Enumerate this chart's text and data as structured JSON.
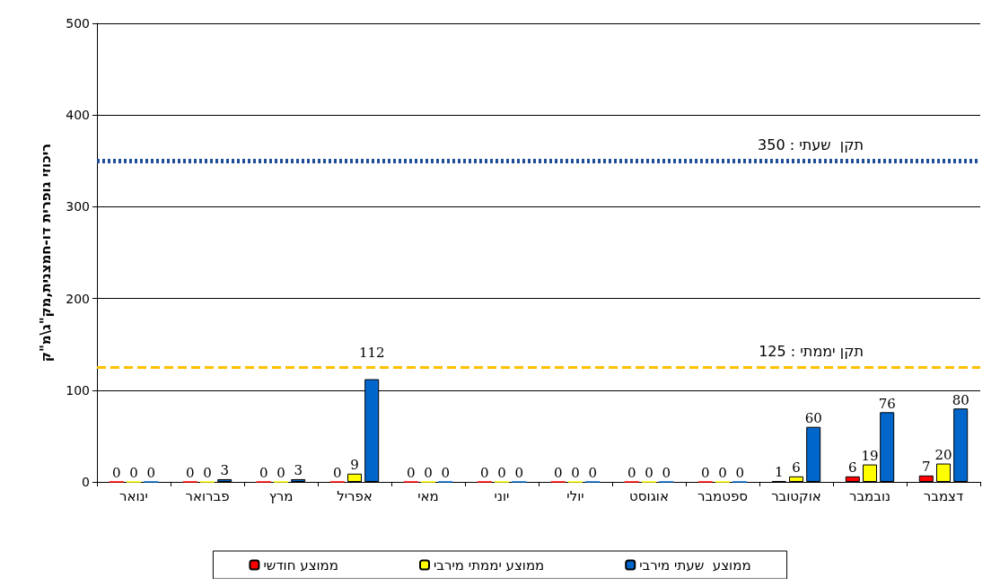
{
  "chart_data": {
    "type": "bar",
    "ylabel": "ריכוזי גופרית דו-חמצנית,מק\"ג\\מ\"ק",
    "categories": [
      "ינואר",
      "פברואר",
      "מרץ",
      "אפריל",
      "מאי",
      "יוני",
      "יולי",
      "אוגוסט",
      "ספטמבר",
      "אוקטובר",
      "נובמבר",
      "דצמבר"
    ],
    "series": [
      {
        "name": "ממוצע חודשי",
        "color": "#ff0000",
        "values": [
          0,
          0,
          0,
          0,
          0,
          0,
          0,
          0,
          0,
          1,
          6,
          7
        ]
      },
      {
        "name": "ממוצע יממתי מירבי",
        "color": "#ffff00",
        "values": [
          0,
          0,
          0,
          9,
          0,
          0,
          0,
          0,
          0,
          6,
          19,
          20
        ]
      },
      {
        "name": "ממוצע  שעתי מירבי",
        "color": "#0066cc",
        "values": [
          0,
          3,
          3,
          112,
          0,
          0,
          0,
          0,
          0,
          60,
          76,
          80
        ]
      }
    ],
    "ylim": [
      0,
      500
    ],
    "yticks": [
      0,
      100,
      200,
      300,
      400,
      500
    ],
    "grid": "y",
    "legend": "bottom",
    "data_labels": true,
    "ref_lines": [
      {
        "axis": "y",
        "value": 350,
        "label": "תקן  שעתי : 350",
        "color": "#1f4e99",
        "line_style": "dotted"
      },
      {
        "axis": "y",
        "value": 125,
        "label": "תקן יממתי : 125",
        "color": "#ffc000",
        "line_style": "dashed"
      }
    ]
  }
}
